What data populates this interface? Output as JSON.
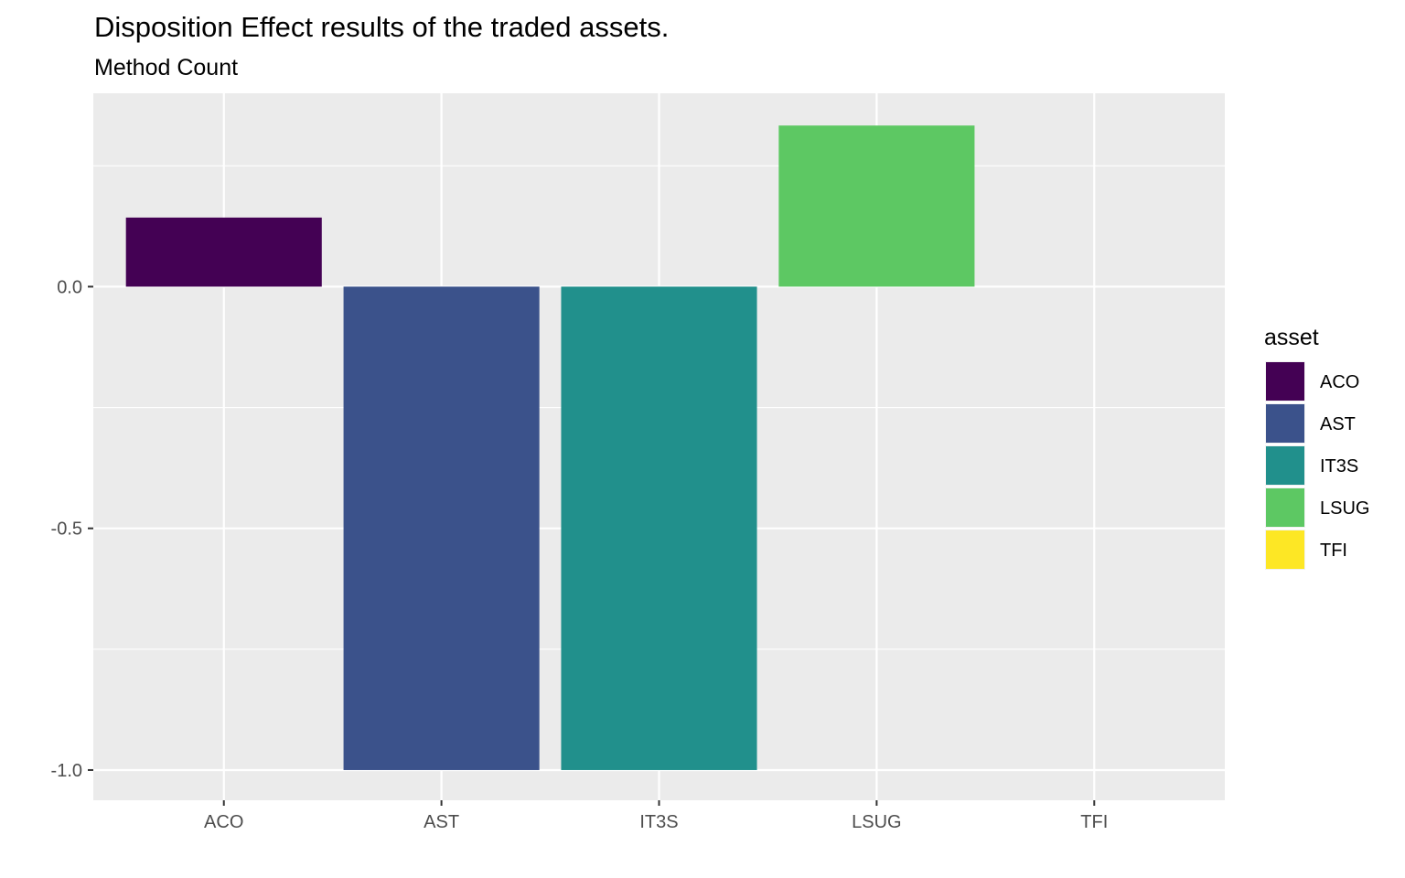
{
  "chart_data": {
    "type": "bar",
    "title": "Disposition Effect results of the traded assets.",
    "subtitle": "Method Count",
    "xlabel": "",
    "ylabel": "",
    "categories": [
      "ACO",
      "AST",
      "IT3S",
      "LSUG",
      "TFI"
    ],
    "values": [
      0.1429,
      -1.0,
      -1.0,
      0.3333,
      0.0
    ],
    "colors": [
      "#440154",
      "#3B528B",
      "#21908C",
      "#5DC863",
      "#FDE725"
    ],
    "ylim": [
      -1.0625,
      0.4
    ],
    "yticks": [
      0.0,
      -0.5,
      -1.0
    ],
    "ytick_labels": [
      "0.0",
      "-0.5",
      "-1.0"
    ],
    "grid": true,
    "panel_background": "#EBEBEB",
    "legend": {
      "title": "asset",
      "position": "right",
      "entries": [
        "ACO",
        "AST",
        "IT3S",
        "LSUG",
        "TFI"
      ]
    }
  }
}
